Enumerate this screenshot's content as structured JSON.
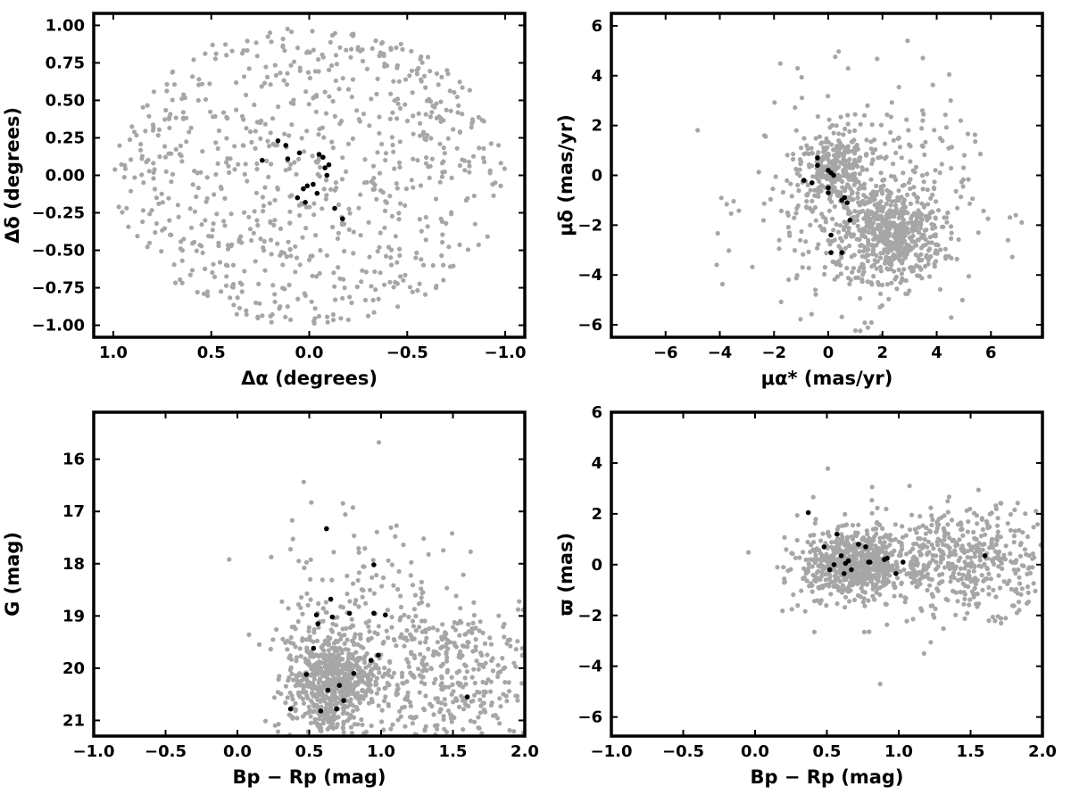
{
  "colors": {
    "field_stars": "#a6a6a6",
    "members": "#000000",
    "axes": "#000000",
    "background": "#ffffff"
  },
  "chart_data": [
    {
      "id": "sky",
      "type": "scatter",
      "xlabel": "Δα (degrees)",
      "ylabel": "Δδ (degrees)",
      "xlim": [
        1.1,
        -1.1
      ],
      "ylim": [
        -1.08,
        1.08
      ],
      "x_inverted": true,
      "xticks": [
        1.0,
        0.5,
        0.0,
        -0.5,
        -1.0
      ],
      "xtick_labels": [
        "1.0",
        "0.5",
        "0.0",
        "−0.5",
        "−1.0"
      ],
      "yticks": [
        1.0,
        0.75,
        0.5,
        0.25,
        0.0,
        -0.25,
        -0.5,
        -0.75,
        -1.0
      ],
      "ytick_labels": [
        "1.00",
        "0.75",
        "0.50",
        "0.25",
        "0.00",
        "−0.25",
        "−0.50",
        "−0.75",
        "−1.00"
      ],
      "grid": false,
      "field": {
        "count": 780,
        "distribution": "uniform disk",
        "radius": 1.0,
        "center": [
          0,
          0
        ]
      },
      "members": {
        "x": [
          0.12,
          0.05,
          -0.05,
          -0.07,
          -0.1,
          -0.13,
          -0.17,
          -0.02,
          0.01,
          0.03,
          0.06,
          0.11,
          -0.08,
          -0.09,
          0.02,
          -0.04,
          0.16,
          0.24
        ],
        "y": [
          0.2,
          0.15,
          0.14,
          0.12,
          0.07,
          -0.22,
          -0.29,
          -0.06,
          -0.07,
          -0.09,
          -0.15,
          0.11,
          0.05,
          0.0,
          -0.18,
          -0.12,
          0.23,
          0.1
        ]
      }
    },
    {
      "id": "proper-motion",
      "type": "scatter",
      "xlabel": "μα* (mas/yr)",
      "ylabel": "μδ (mas/yr)",
      "xlim": [
        -8,
        7.9
      ],
      "ylim": [
        -6.5,
        6.5
      ],
      "xticks": [
        -6,
        -4,
        -2,
        0,
        2,
        4,
        6
      ],
      "xtick_labels": [
        "−6",
        "−4",
        "−2",
        "0",
        "2",
        "4",
        "6"
      ],
      "yticks": [
        6,
        4,
        2,
        0,
        -2,
        -4,
        -6
      ],
      "ytick_labels": [
        "6",
        "4",
        "2",
        "0",
        "−2",
        "−4",
        "−6"
      ],
      "grid": false,
      "field": {
        "count": 1150,
        "clumps": [
          {
            "x": 0.2,
            "y": 0.2,
            "sx": 0.6,
            "sy": 0.6,
            "n": 220
          },
          {
            "x": 2.4,
            "y": -2.4,
            "sx": 0.9,
            "sy": 0.9,
            "n": 500
          },
          {
            "x": 1.2,
            "y": -1.0,
            "sx": 2.0,
            "sy": 2.2,
            "n": 430
          }
        ]
      },
      "members": {
        "x": [
          0.0,
          0.1,
          0.2,
          -0.4,
          -0.9,
          -0.6,
          0.5,
          0.6,
          0.7,
          0.0,
          0.1,
          0.5,
          0.1,
          0.8,
          0.0,
          -0.4
        ],
        "y": [
          0.2,
          0.1,
          0.0,
          0.7,
          -0.2,
          -0.3,
          -1.0,
          -0.9,
          -1.1,
          -0.5,
          -2.4,
          -3.1,
          -3.1,
          -1.8,
          -0.7,
          0.4
        ]
      }
    },
    {
      "id": "cmd",
      "type": "scatter",
      "xlabel": "Bp − Rp (mag)",
      "ylabel": "G (mag)",
      "xlim": [
        -1.0,
        2.0
      ],
      "ylim": [
        21.3,
        15.1
      ],
      "y_inverted": true,
      "xticks": [
        -1.0,
        -0.5,
        0.0,
        0.5,
        1.0,
        1.5,
        2.0
      ],
      "xtick_labels": [
        "−1.0",
        "−0.5",
        "0.0",
        "0.5",
        "1.0",
        "1.5",
        "2.0"
      ],
      "yticks": [
        21,
        20,
        19,
        18,
        17,
        16
      ],
      "ytick_labels": [
        "21",
        "20",
        "19",
        "18",
        "17",
        "16"
      ],
      "grid": false,
      "field": {
        "count": 1200,
        "clumps": [
          {
            "x": 0.65,
            "y": 20.3,
            "sx": 0.15,
            "sy": 0.5,
            "n": 600
          },
          {
            "x": 1.4,
            "y": 20.2,
            "sx": 0.35,
            "sy": 0.8,
            "n": 450
          },
          {
            "x": 0.8,
            "y": 18.8,
            "sx": 0.3,
            "sy": 1.0,
            "n": 150
          }
        ]
      },
      "members": {
        "x": [
          0.37,
          0.58,
          0.48,
          0.63,
          0.69,
          0.71,
          0.74,
          0.81,
          0.53,
          0.56,
          0.55,
          0.66,
          0.78,
          0.93,
          0.98,
          0.95,
          1.03,
          0.65,
          0.95,
          0.62,
          1.6
        ],
        "y": [
          20.78,
          20.82,
          20.12,
          20.42,
          20.78,
          20.33,
          20.62,
          20.1,
          19.62,
          19.15,
          18.98,
          19.02,
          18.95,
          19.85,
          19.75,
          18.95,
          18.98,
          18.68,
          18.02,
          17.33,
          20.55
        ]
      }
    },
    {
      "id": "parallax",
      "type": "scatter",
      "xlabel": "Bp − Rp (mag)",
      "ylabel": "ϖ (mas)",
      "xlim": [
        -1.0,
        2.0
      ],
      "ylim": [
        -6.75,
        6.0
      ],
      "xticks": [
        -1.0,
        -0.5,
        0.0,
        0.5,
        1.0,
        1.5,
        2.0
      ],
      "xtick_labels": [
        "−1.0",
        "−0.5",
        "0.0",
        "0.5",
        "1.0",
        "1.5",
        "2.0"
      ],
      "yticks": [
        6,
        4,
        2,
        0,
        -2,
        -4,
        -6
      ],
      "ytick_labels": [
        "6",
        "4",
        "2",
        "0",
        "−2",
        "−4",
        "−6"
      ],
      "grid": false,
      "field": {
        "count": 1200,
        "clumps": [
          {
            "x": 0.7,
            "y": 0.0,
            "sx": 0.18,
            "sy": 0.6,
            "n": 650
          },
          {
            "x": 1.5,
            "y": 0.2,
            "sx": 0.3,
            "sy": 1.0,
            "n": 450
          },
          {
            "x": 0.8,
            "y": 0.0,
            "sx": 0.35,
            "sy": 1.6,
            "n": 100
          }
        ]
      },
      "members": {
        "x": [
          0.37,
          0.57,
          0.48,
          0.55,
          0.6,
          0.63,
          0.65,
          0.67,
          0.72,
          0.77,
          0.79,
          0.8,
          0.9,
          0.92,
          0.98,
          1.03,
          1.6,
          0.52,
          0.62
        ],
        "y": [
          2.05,
          1.2,
          0.7,
          0.0,
          0.35,
          0.05,
          0.15,
          -0.2,
          0.8,
          0.7,
          0.1,
          0.1,
          0.2,
          0.25,
          -0.35,
          0.1,
          0.35,
          -0.2,
          -0.35
        ]
      }
    }
  ]
}
